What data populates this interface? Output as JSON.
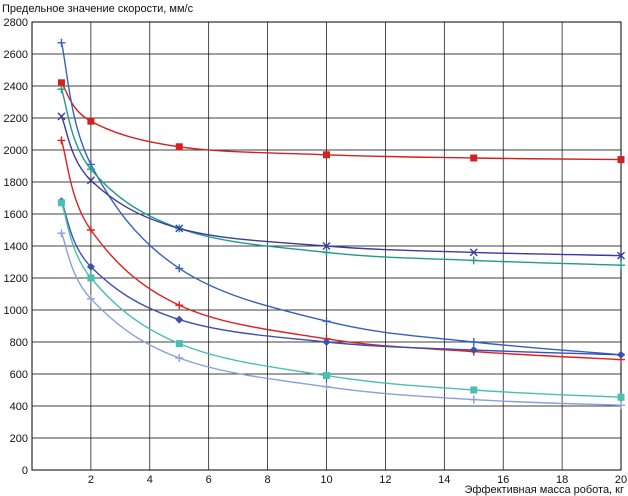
{
  "chart_data": {
    "type": "line",
    "title": "",
    "ylabel": "Предельное значение скорости, мм/с",
    "xlabel": "Эффективная масса робота, кг",
    "xlim": [
      0,
      20
    ],
    "ylim": [
      0,
      2800
    ],
    "x_ticks": [
      0,
      2,
      4,
      6,
      8,
      10,
      12,
      14,
      16,
      18,
      20
    ],
    "y_ticks": [
      0,
      200,
      400,
      600,
      800,
      1000,
      1200,
      1400,
      1600,
      1800,
      2000,
      2200,
      2400,
      2600,
      2800
    ],
    "grid": true,
    "legend": "none",
    "x": [
      1,
      2,
      5,
      10,
      15,
      20
    ],
    "series": [
      {
        "color": "#d32020",
        "marker": "square",
        "values": [
          2420,
          2180,
          2020,
          1970,
          1950,
          1940
        ]
      },
      {
        "color": "#3560c0",
        "marker": "plus",
        "values": [
          2670,
          1910,
          1260,
          930,
          800,
          720
        ]
      },
      {
        "color": "#1f9a8a",
        "marker": "plus",
        "values": [
          2380,
          1880,
          1510,
          1360,
          1310,
          1280
        ]
      },
      {
        "color": "#3a3aa0",
        "marker": "x",
        "values": [
          2210,
          1810,
          1510,
          1400,
          1360,
          1340
        ]
      },
      {
        "color": "#e02020",
        "marker": "plus",
        "values": [
          2060,
          1500,
          1030,
          820,
          740,
          690
        ]
      },
      {
        "color": "#3f4fb0",
        "marker": "diamond",
        "values": [
          1680,
          1270,
          940,
          800,
          750,
          720
        ]
      },
      {
        "color": "#48c0b0",
        "marker": "square",
        "values": [
          1670,
          1200,
          790,
          590,
          500,
          455
        ]
      },
      {
        "color": "#8aa0d8",
        "marker": "plus",
        "values": [
          1480,
          1070,
          700,
          520,
          440,
          405
        ]
      }
    ]
  }
}
